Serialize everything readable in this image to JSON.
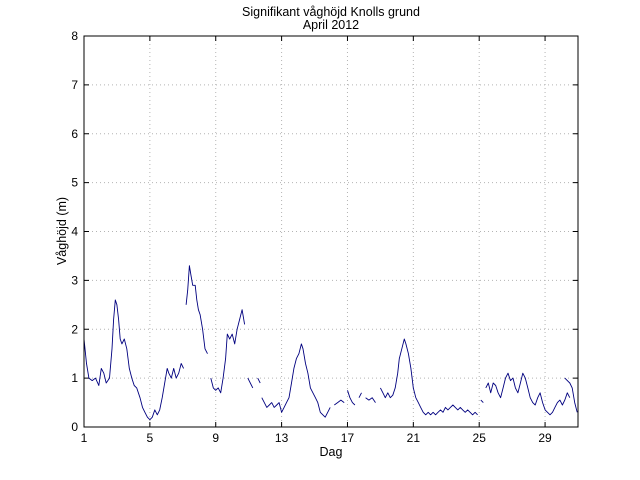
{
  "chart_data": {
    "type": "line",
    "title": "Signifikant våghöjd Knolls grund",
    "subtitle": "April 2012",
    "xlabel": "Dag",
    "ylabel": "Våghöjd (m)",
    "xlim": [
      1,
      31
    ],
    "ylim": [
      0,
      8
    ],
    "xticks": [
      "1",
      "5",
      "9",
      "13",
      "17",
      "21",
      "25",
      "29"
    ],
    "yticks": [
      "0",
      "1",
      "2",
      "3",
      "4",
      "5",
      "6",
      "7",
      "8"
    ],
    "grid": true,
    "line_color": "#00007f",
    "series": [
      {
        "segments": [
          [
            [
              1.0,
              1.8
            ],
            [
              1.15,
              1.3
            ],
            [
              1.3,
              1.0
            ],
            [
              1.5,
              0.95
            ],
            [
              1.7,
              1.0
            ],
            [
              1.9,
              0.85
            ],
            [
              2.05,
              1.2
            ],
            [
              2.2,
              1.1
            ],
            [
              2.35,
              0.9
            ],
            [
              2.55,
              1.0
            ],
            [
              2.7,
              1.6
            ],
            [
              2.8,
              2.2
            ],
            [
              2.9,
              2.6
            ],
            [
              3.0,
              2.5
            ],
            [
              3.1,
              2.2
            ],
            [
              3.2,
              1.8
            ],
            [
              3.3,
              1.7
            ],
            [
              3.45,
              1.8
            ],
            [
              3.6,
              1.6
            ],
            [
              3.75,
              1.2
            ],
            [
              3.9,
              1.0
            ],
            [
              4.05,
              0.85
            ],
            [
              4.2,
              0.8
            ],
            [
              4.4,
              0.6
            ],
            [
              4.55,
              0.4
            ],
            [
              4.7,
              0.3
            ],
            [
              4.85,
              0.2
            ],
            [
              5.0,
              0.15
            ],
            [
              5.15,
              0.2
            ],
            [
              5.3,
              0.35
            ],
            [
              5.45,
              0.25
            ],
            [
              5.6,
              0.35
            ],
            [
              5.75,
              0.6
            ],
            [
              5.9,
              0.9
            ],
            [
              6.05,
              1.2
            ],
            [
              6.15,
              1.1
            ],
            [
              6.3,
              1.0
            ],
            [
              6.45,
              1.2
            ],
            [
              6.6,
              1.0
            ],
            [
              6.75,
              1.1
            ],
            [
              6.9,
              1.3
            ],
            [
              7.05,
              1.2
            ]
          ],
          [
            [
              7.2,
              2.5
            ],
            [
              7.3,
              2.8
            ],
            [
              7.4,
              3.3
            ],
            [
              7.5,
              3.1
            ],
            [
              7.6,
              2.9
            ],
            [
              7.75,
              2.9
            ],
            [
              7.85,
              2.6
            ],
            [
              7.95,
              2.4
            ],
            [
              8.05,
              2.3
            ],
            [
              8.2,
              2.0
            ],
            [
              8.35,
              1.6
            ],
            [
              8.5,
              1.5
            ]
          ],
          [
            [
              8.7,
              1.0
            ],
            [
              8.85,
              0.8
            ],
            [
              9.0,
              0.75
            ],
            [
              9.15,
              0.8
            ],
            [
              9.3,
              0.7
            ],
            [
              9.45,
              1.0
            ],
            [
              9.6,
              1.4
            ],
            [
              9.7,
              1.9
            ],
            [
              9.85,
              1.8
            ],
            [
              10.0,
              1.9
            ],
            [
              10.15,
              1.7
            ],
            [
              10.3,
              2.0
            ],
            [
              10.45,
              2.2
            ],
            [
              10.6,
              2.4
            ],
            [
              10.75,
              2.1
            ]
          ],
          [
            [
              10.95,
              1.0
            ],
            [
              11.1,
              0.9
            ],
            [
              11.25,
              0.8
            ]
          ],
          [
            [
              11.55,
              1.0
            ],
            [
              11.7,
              0.9
            ]
          ],
          [
            [
              11.8,
              0.6
            ],
            [
              11.95,
              0.5
            ],
            [
              12.1,
              0.4
            ],
            [
              12.25,
              0.45
            ],
            [
              12.4,
              0.5
            ],
            [
              12.55,
              0.4
            ],
            [
              12.7,
              0.45
            ],
            [
              12.85,
              0.5
            ],
            [
              13.0,
              0.3
            ],
            [
              13.15,
              0.4
            ],
            [
              13.3,
              0.5
            ],
            [
              13.45,
              0.6
            ],
            [
              13.6,
              0.9
            ],
            [
              13.75,
              1.2
            ],
            [
              13.9,
              1.4
            ],
            [
              14.05,
              1.5
            ],
            [
              14.2,
              1.7
            ],
            [
              14.3,
              1.6
            ],
            [
              14.45,
              1.3
            ],
            [
              14.6,
              1.1
            ],
            [
              14.75,
              0.8
            ],
            [
              14.9,
              0.7
            ],
            [
              15.05,
              0.6
            ],
            [
              15.2,
              0.5
            ],
            [
              15.35,
              0.3
            ],
            [
              15.5,
              0.25
            ],
            [
              15.65,
              0.2
            ],
            [
              15.8,
              0.3
            ],
            [
              15.95,
              0.4
            ]
          ],
          [
            [
              16.2,
              0.45
            ],
            [
              16.4,
              0.5
            ],
            [
              16.6,
              0.55
            ],
            [
              16.8,
              0.5
            ]
          ],
          [
            [
              17.0,
              0.75
            ],
            [
              17.15,
              0.6
            ],
            [
              17.3,
              0.5
            ],
            [
              17.45,
              0.45
            ]
          ],
          [
            [
              17.7,
              0.6
            ],
            [
              17.85,
              0.7
            ]
          ],
          [
            [
              18.1,
              0.6
            ],
            [
              18.3,
              0.55
            ],
            [
              18.5,
              0.6
            ],
            [
              18.7,
              0.5
            ]
          ],
          [
            [
              19.0,
              0.8
            ],
            [
              19.15,
              0.7
            ],
            [
              19.3,
              0.6
            ],
            [
              19.45,
              0.7
            ],
            [
              19.6,
              0.6
            ],
            [
              19.75,
              0.65
            ],
            [
              19.9,
              0.8
            ],
            [
              20.05,
              1.1
            ],
            [
              20.15,
              1.4
            ],
            [
              20.3,
              1.6
            ],
            [
              20.45,
              1.8
            ],
            [
              20.55,
              1.7
            ],
            [
              20.7,
              1.5
            ],
            [
              20.85,
              1.2
            ],
            [
              21.0,
              0.8
            ],
            [
              21.15,
              0.6
            ],
            [
              21.3,
              0.5
            ],
            [
              21.45,
              0.4
            ],
            [
              21.6,
              0.3
            ],
            [
              21.75,
              0.25
            ],
            [
              21.9,
              0.3
            ],
            [
              22.05,
              0.25
            ],
            [
              22.2,
              0.3
            ],
            [
              22.35,
              0.25
            ],
            [
              22.5,
              0.3
            ],
            [
              22.65,
              0.35
            ],
            [
              22.8,
              0.3
            ],
            [
              22.95,
              0.4
            ],
            [
              23.1,
              0.35
            ],
            [
              23.25,
              0.4
            ],
            [
              23.4,
              0.45
            ],
            [
              23.55,
              0.4
            ],
            [
              23.7,
              0.35
            ],
            [
              23.85,
              0.4
            ],
            [
              24.0,
              0.35
            ],
            [
              24.15,
              0.3
            ],
            [
              24.3,
              0.35
            ],
            [
              24.45,
              0.3
            ],
            [
              24.6,
              0.25
            ],
            [
              24.75,
              0.3
            ],
            [
              24.9,
              0.25
            ]
          ],
          [
            [
              25.1,
              0.55
            ],
            [
              25.25,
              0.5
            ]
          ],
          [
            [
              25.4,
              0.8
            ],
            [
              25.55,
              0.9
            ],
            [
              25.7,
              0.7
            ],
            [
              25.85,
              0.9
            ],
            [
              26.0,
              0.85
            ],
            [
              26.15,
              0.7
            ],
            [
              26.3,
              0.6
            ],
            [
              26.45,
              0.8
            ],
            [
              26.6,
              1.0
            ],
            [
              26.75,
              1.1
            ],
            [
              26.9,
              0.95
            ],
            [
              27.05,
              1.0
            ],
            [
              27.2,
              0.8
            ],
            [
              27.35,
              0.7
            ],
            [
              27.5,
              0.9
            ],
            [
              27.65,
              1.1
            ],
            [
              27.8,
              1.0
            ],
            [
              27.95,
              0.8
            ],
            [
              28.1,
              0.6
            ],
            [
              28.25,
              0.5
            ],
            [
              28.4,
              0.45
            ],
            [
              28.55,
              0.6
            ],
            [
              28.7,
              0.7
            ],
            [
              28.85,
              0.5
            ],
            [
              29.0,
              0.35
            ],
            [
              29.15,
              0.3
            ],
            [
              29.3,
              0.25
            ],
            [
              29.45,
              0.3
            ],
            [
              29.6,
              0.4
            ],
            [
              29.75,
              0.5
            ],
            [
              29.9,
              0.55
            ],
            [
              30.05,
              0.45
            ],
            [
              30.2,
              0.55
            ],
            [
              30.35,
              0.7
            ],
            [
              30.5,
              0.6
            ]
          ],
          [
            [
              30.2,
              1.0
            ],
            [
              30.35,
              0.95
            ],
            [
              30.5,
              0.9
            ],
            [
              30.65,
              0.8
            ],
            [
              30.8,
              0.5
            ],
            [
              30.95,
              0.3
            ]
          ]
        ]
      }
    ]
  }
}
